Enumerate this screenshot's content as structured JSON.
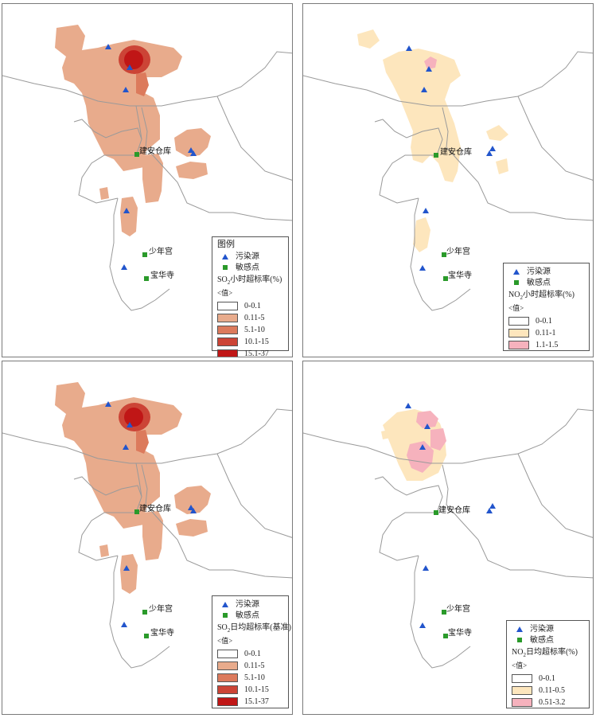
{
  "legend_common": {
    "heading": "图例",
    "source_label": "污染源",
    "receptor_label": "敏感点",
    "value_label": "<值>"
  },
  "place_labels": {
    "warehouse": "建安仓库",
    "youth_palace": "少年宫",
    "temple": "宝华寺"
  },
  "colors": {
    "source": "#2255cc",
    "receptor": "#2a9a2a",
    "border_lines": "#9a9a9a"
  },
  "panels": [
    {
      "id": "so2-hourly",
      "metric_prefix": "SO",
      "metric_sub": "2",
      "metric_suffix": "小时超标率(%)",
      "show_heading": true,
      "classes": [
        {
          "label": "0-0.1",
          "color": "#ffffff"
        },
        {
          "label": "0.11-5",
          "color": "#e8ab8c"
        },
        {
          "label": "5.1-10",
          "color": "#dc7a5c"
        },
        {
          "label": "10.1-15",
          "color": "#cc4436"
        },
        {
          "label": "15.1-37",
          "color": "#c01616"
        }
      ]
    },
    {
      "id": "no2-hourly",
      "metric_prefix": "NO",
      "metric_sub": "2",
      "metric_suffix": "小时超标率(%)",
      "show_heading": false,
      "classes": [
        {
          "label": "0-0.1",
          "color": "#ffffff"
        },
        {
          "label": "0.11-1",
          "color": "#fde6bd"
        },
        {
          "label": "1.1-1.5",
          "color": "#f6b2bd"
        }
      ]
    },
    {
      "id": "so2-daily",
      "metric_prefix": "SO",
      "metric_sub": "2",
      "metric_suffix": "日均超标率(基准)",
      "show_heading": false,
      "classes": [
        {
          "label": "0-0.1",
          "color": "#ffffff"
        },
        {
          "label": "0.11-5",
          "color": "#e8ab8c"
        },
        {
          "label": "5.1-10",
          "color": "#dc7a5c"
        },
        {
          "label": "10.1-15",
          "color": "#cc4436"
        },
        {
          "label": "15.1-37",
          "color": "#c01616"
        }
      ]
    },
    {
      "id": "no2-daily",
      "metric_prefix": "NO",
      "metric_sub": "2",
      "metric_suffix": "日均超标率(%)",
      "show_heading": false,
      "classes": [
        {
          "label": "0-0.1",
          "color": "#ffffff"
        },
        {
          "label": "0.11-0.5",
          "color": "#fde6bd"
        },
        {
          "label": "0.51-3.2",
          "color": "#f6b2bd"
        }
      ]
    }
  ]
}
